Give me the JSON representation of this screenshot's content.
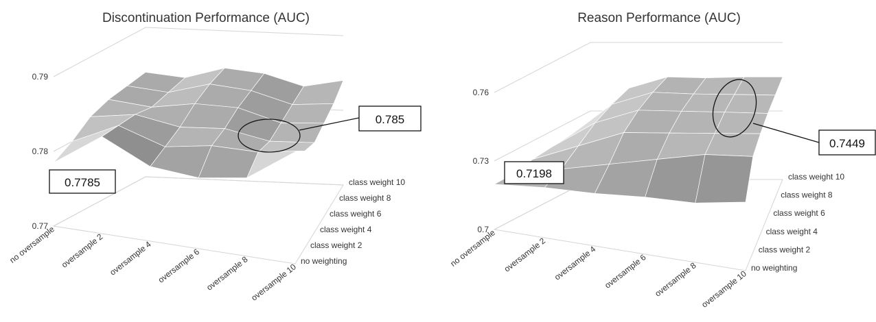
{
  "chart_data": [
    {
      "type": "surface",
      "title": "Discontinuation Performance (AUC)",
      "x_categories": [
        "no oversample",
        "oversample 2",
        "oversample 4",
        "oversample 6",
        "oversample 8",
        "oversample 10"
      ],
      "y_categories": [
        "no weighting",
        "class weight 2",
        "class weight 4",
        "class weight 6",
        "class weight 8",
        "class weight 10"
      ],
      "z_ticks": [
        "0.77",
        "0.78",
        "0.79"
      ],
      "zlim": [
        0.77,
        0.79
      ],
      "z": [
        [
          0.7785,
          0.783,
          0.78,
          0.7795,
          0.7805,
          0.785
        ],
        [
          0.78,
          0.783,
          0.781,
          0.782,
          0.782,
          0.783
        ],
        [
          0.782,
          0.783,
          0.782,
          0.7825,
          0.7815,
          0.782
        ],
        [
          0.783,
          0.7825,
          0.7835,
          0.7835,
          0.782,
          0.7825
        ],
        [
          0.7835,
          0.783,
          0.7845,
          0.784,
          0.7825,
          0.783
        ],
        [
          0.784,
          0.7835,
          0.785,
          0.7845,
          0.783,
          0.784
        ]
      ],
      "annotations": [
        {
          "label": "0.7785",
          "x": "no oversample",
          "y": "no weighting"
        },
        {
          "label": "0.785",
          "x": "oversample 10",
          "y": "no weighting"
        }
      ]
    },
    {
      "type": "surface",
      "title": "Reason Performance (AUC)",
      "x_categories": [
        "no oversample",
        "oversample 2",
        "oversample 4",
        "oversample 6",
        "oversample 8",
        "oversample 10"
      ],
      "y_categories": [
        "no weighting",
        "class weight 2",
        "class weight 4",
        "class weight 6",
        "class weight 8",
        "class weight 10"
      ],
      "z_ticks": [
        "0.7",
        "0.73",
        "0.76"
      ],
      "zlim": [
        0.7,
        0.76
      ],
      "z": [
        [
          0.7198,
          0.722,
          0.723,
          0.725,
          0.726,
          0.73
        ],
        [
          0.72,
          0.725,
          0.73,
          0.735,
          0.74,
          0.742
        ],
        [
          0.722,
          0.73,
          0.738,
          0.74,
          0.742,
          0.744
        ],
        [
          0.723,
          0.735,
          0.742,
          0.743,
          0.744,
          0.7449
        ],
        [
          0.724,
          0.738,
          0.744,
          0.744,
          0.7445,
          0.7449
        ],
        [
          0.725,
          0.74,
          0.7449,
          0.7445,
          0.7449,
          0.7449
        ]
      ],
      "annotations": [
        {
          "label": "0.7198",
          "x": "no oversample",
          "y": "no weighting"
        },
        {
          "label": "0.7449",
          "x": "oversample 10",
          "y": "class weight 10"
        }
      ]
    }
  ]
}
